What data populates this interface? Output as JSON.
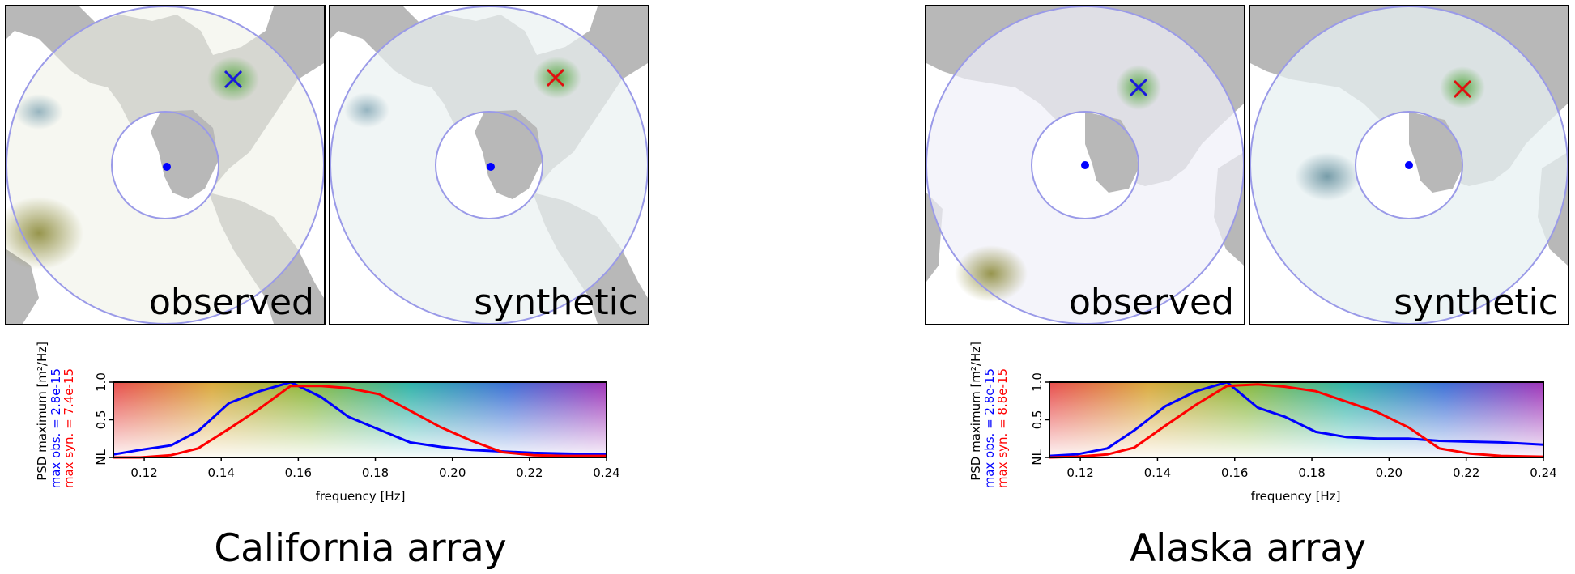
{
  "figure": {
    "arrays": [
      {
        "title": "California array",
        "panels": [
          {
            "label": "observed",
            "marker_color": "#1a1adb"
          },
          {
            "label": "synthetic",
            "marker_color": "#e01010"
          }
        ],
        "psd": {
          "ylabel_line1": "PSD maximum [m²/Hz]",
          "ylabel_obs": "max obs. = 2.8e-15",
          "ylabel_syn": "max syn. = 7.4e-15"
        }
      },
      {
        "title": "Alaska array",
        "panels": [
          {
            "label": "observed",
            "marker_color": "#1a1adb"
          },
          {
            "label": "synthetic",
            "marker_color": "#e01010"
          }
        ],
        "psd": {
          "ylabel_line1": "PSD maximum [m²/Hz]",
          "ylabel_obs": "max obs. = 2.8e-15",
          "ylabel_syn": "max syn. = 8.8e-15"
        }
      }
    ]
  },
  "chart_data": [
    {
      "type": "line",
      "title": "California array",
      "xlabel": "frequency [Hz]",
      "ylabel": "PSD maximum [m²/Hz]",
      "xlim": [
        0.112,
        0.24
      ],
      "ylim": [
        0,
        1
      ],
      "xticks": [
        "0.12",
        "0.14",
        "0.16",
        "0.18",
        "0.20",
        "0.22",
        "0.24"
      ],
      "xtick_values": [
        0.12,
        0.14,
        0.16,
        0.18,
        0.2,
        0.22,
        0.24
      ],
      "yticks": [
        "NL",
        "0.5",
        "1.0"
      ],
      "ytick_values": [
        0,
        0.5,
        1.0
      ],
      "series": [
        {
          "name": "max obs. = 2.8e-15",
          "color": "#0000ff",
          "x": [
            0.112,
            0.119,
            0.127,
            0.134,
            0.142,
            0.15,
            0.158,
            0.166,
            0.173,
            0.181,
            0.189,
            0.197,
            0.205,
            0.213,
            0.221,
            0.229,
            0.24
          ],
          "y": [
            0.04,
            0.1,
            0.16,
            0.35,
            0.72,
            0.88,
            1.0,
            0.8,
            0.54,
            0.37,
            0.2,
            0.14,
            0.1,
            0.08,
            0.06,
            0.05,
            0.04
          ]
        },
        {
          "name": "max syn. = 7.4e-15",
          "color": "#ff0000",
          "x": [
            0.112,
            0.119,
            0.127,
            0.134,
            0.142,
            0.15,
            0.158,
            0.166,
            0.173,
            0.181,
            0.189,
            0.197,
            0.205,
            0.213,
            0.221,
            0.229,
            0.24
          ],
          "y": [
            0.0,
            0.0,
            0.03,
            0.12,
            0.38,
            0.65,
            0.95,
            0.95,
            0.92,
            0.84,
            0.62,
            0.4,
            0.22,
            0.07,
            0.03,
            0.02,
            0.02
          ]
        }
      ]
    },
    {
      "type": "line",
      "title": "Alaska array",
      "xlabel": "frequency [Hz]",
      "ylabel": "PSD maximum [m²/Hz]",
      "xlim": [
        0.112,
        0.24
      ],
      "ylim": [
        0,
        1
      ],
      "xticks": [
        "0.12",
        "0.14",
        "0.16",
        "0.18",
        "0.20",
        "0.22",
        "0.24"
      ],
      "xtick_values": [
        0.12,
        0.14,
        0.16,
        0.18,
        0.2,
        0.22,
        0.24
      ],
      "yticks": [
        "NL",
        "0.5",
        "1.0"
      ],
      "ytick_values": [
        0,
        0.5,
        1.0
      ],
      "series": [
        {
          "name": "max obs. = 2.8e-15",
          "color": "#0000ff",
          "x": [
            0.112,
            0.119,
            0.127,
            0.134,
            0.142,
            0.15,
            0.158,
            0.166,
            0.173,
            0.181,
            0.189,
            0.197,
            0.205,
            0.213,
            0.221,
            0.229,
            0.24
          ],
          "y": [
            0.02,
            0.04,
            0.12,
            0.36,
            0.68,
            0.88,
            1.0,
            0.66,
            0.54,
            0.34,
            0.27,
            0.25,
            0.25,
            0.22,
            0.21,
            0.2,
            0.17
          ]
        },
        {
          "name": "max syn. = 8.8e-15",
          "color": "#ff0000",
          "x": [
            0.112,
            0.119,
            0.127,
            0.134,
            0.142,
            0.15,
            0.158,
            0.166,
            0.173,
            0.181,
            0.189,
            0.197,
            0.205,
            0.213,
            0.221,
            0.229,
            0.24
          ],
          "y": [
            0.0,
            0.01,
            0.04,
            0.13,
            0.42,
            0.7,
            0.95,
            0.97,
            0.94,
            0.88,
            0.74,
            0.6,
            0.4,
            0.12,
            0.05,
            0.02,
            0.01
          ]
        }
      ]
    }
  ]
}
